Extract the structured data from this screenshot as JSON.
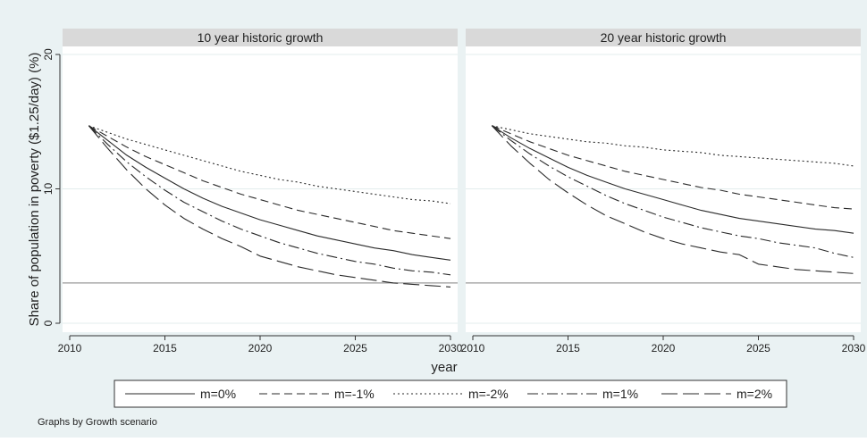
{
  "note": "Graphs by Growth scenario",
  "chart_data": {
    "type": "line",
    "ylabel": "Share of population in poverty ($1.25/day) (%)",
    "xlabel": "year",
    "x_ticks": [
      2010,
      2015,
      2020,
      2025,
      2030
    ],
    "y_ticks": [
      0,
      10,
      20
    ],
    "xlim": [
      2010,
      2030
    ],
    "ylim": [
      0,
      20
    ],
    "reference_line": 3,
    "legend_position": "bottom",
    "legend": [
      {
        "label": "m=0%",
        "dash": "solid"
      },
      {
        "label": "m=-1%",
        "dash": "dash"
      },
      {
        "label": "m=-2%",
        "dash": "dot"
      },
      {
        "label": "m=1%",
        "dash": "dashdot"
      },
      {
        "label": "m=2%",
        "dash": "longdash"
      }
    ],
    "panels": [
      {
        "title": "10 year historic growth",
        "series": [
          {
            "name": "m=0%",
            "x": [
              2011,
              2012,
              2013,
              2014,
              2015,
              2016,
              2017,
              2018,
              2019,
              2020,
              2021,
              2022,
              2023,
              2024,
              2025,
              2026,
              2027,
              2028,
              2029,
              2030
            ],
            "y": [
              14.7,
              13.6,
              12.5,
              11.6,
              10.8,
              10.0,
              9.3,
              8.7,
              8.2,
              7.7,
              7.3,
              6.9,
              6.5,
              6.2,
              5.9,
              5.6,
              5.4,
              5.1,
              4.9,
              4.7
            ]
          },
          {
            "name": "m=-1%",
            "x": [
              2011,
              2012,
              2013,
              2014,
              2015,
              2016,
              2017,
              2018,
              2019,
              2020,
              2021,
              2022,
              2023,
              2024,
              2025,
              2026,
              2027,
              2028,
              2029,
              2030
            ],
            "y": [
              14.7,
              13.9,
              13.1,
              12.4,
              11.8,
              11.2,
              10.6,
              10.1,
              9.6,
              9.2,
              8.8,
              8.4,
              8.1,
              7.8,
              7.5,
              7.2,
              6.9,
              6.7,
              6.5,
              6.3
            ]
          },
          {
            "name": "m=-2%",
            "x": [
              2011,
              2012,
              2013,
              2014,
              2015,
              2016,
              2017,
              2018,
              2019,
              2020,
              2021,
              2022,
              2023,
              2024,
              2025,
              2026,
              2027,
              2028,
              2029,
              2030
            ],
            "y": [
              14.7,
              14.2,
              13.7,
              13.3,
              12.9,
              12.5,
              12.1,
              11.7,
              11.3,
              11.0,
              10.7,
              10.5,
              10.2,
              10.0,
              9.8,
              9.6,
              9.4,
              9.2,
              9.1,
              8.9
            ]
          },
          {
            "name": "m=1%",
            "x": [
              2011,
              2012,
              2013,
              2014,
              2015,
              2016,
              2017,
              2018,
              2019,
              2020,
              2021,
              2022,
              2023,
              2024,
              2025,
              2026,
              2027,
              2028,
              2029,
              2030
            ],
            "y": [
              14.7,
              13.3,
              12.0,
              10.9,
              9.9,
              9.0,
              8.3,
              7.6,
              7.0,
              6.5,
              6.0,
              5.6,
              5.2,
              4.9,
              4.6,
              4.4,
              4.1,
              3.9,
              3.8,
              3.6
            ]
          },
          {
            "name": "m=2%",
            "x": [
              2011,
              2012,
              2013,
              2014,
              2015,
              2016,
              2017,
              2018,
              2019,
              2020,
              2021,
              2022,
              2023,
              2024,
              2025,
              2026,
              2027,
              2028,
              2029,
              2030
            ],
            "y": [
              14.7,
              13.0,
              11.4,
              10.0,
              8.8,
              7.8,
              7.0,
              6.3,
              5.7,
              5.0,
              4.6,
              4.2,
              3.9,
              3.6,
              3.4,
              3.2,
              3.0,
              2.9,
              2.8,
              2.7
            ]
          }
        ]
      },
      {
        "title": "20 year historic growth",
        "series": [
          {
            "name": "m=0%",
            "x": [
              2011,
              2012,
              2013,
              2014,
              2015,
              2016,
              2017,
              2018,
              2019,
              2020,
              2021,
              2022,
              2023,
              2024,
              2025,
              2026,
              2027,
              2028,
              2029,
              2030
            ],
            "y": [
              14.7,
              13.8,
              13.0,
              12.3,
              11.6,
              11.0,
              10.5,
              10.0,
              9.6,
              9.2,
              8.8,
              8.4,
              8.1,
              7.8,
              7.6,
              7.4,
              7.2,
              7.0,
              6.9,
              6.7
            ]
          },
          {
            "name": "m=-1%",
            "x": [
              2011,
              2012,
              2013,
              2014,
              2015,
              2016,
              2017,
              2018,
              2019,
              2020,
              2021,
              2022,
              2023,
              2024,
              2025,
              2026,
              2027,
              2028,
              2029,
              2030
            ],
            "y": [
              14.7,
              14.1,
              13.5,
              13.0,
              12.5,
              12.1,
              11.7,
              11.3,
              11.0,
              10.7,
              10.4,
              10.1,
              9.9,
              9.6,
              9.4,
              9.2,
              9.0,
              8.8,
              8.6,
              8.5
            ]
          },
          {
            "name": "m=-2%",
            "x": [
              2011,
              2012,
              2013,
              2014,
              2015,
              2016,
              2017,
              2018,
              2019,
              2020,
              2021,
              2022,
              2023,
              2024,
              2025,
              2026,
              2027,
              2028,
              2029,
              2030
            ],
            "y": [
              14.7,
              14.4,
              14.1,
              13.9,
              13.7,
              13.5,
              13.4,
              13.2,
              13.1,
              12.9,
              12.8,
              12.7,
              12.5,
              12.4,
              12.3,
              12.2,
              12.1,
              12.0,
              11.9,
              11.7
            ]
          },
          {
            "name": "m=1%",
            "x": [
              2011,
              2012,
              2013,
              2014,
              2015,
              2016,
              2017,
              2018,
              2019,
              2020,
              2021,
              2022,
              2023,
              2024,
              2025,
              2026,
              2027,
              2028,
              2029,
              2030
            ],
            "y": [
              14.7,
              13.6,
              12.6,
              11.7,
              10.9,
              10.2,
              9.5,
              8.9,
              8.4,
              7.9,
              7.5,
              7.1,
              6.8,
              6.5,
              6.3,
              6.0,
              5.8,
              5.6,
              5.2,
              4.9
            ]
          },
          {
            "name": "m=2%",
            "x": [
              2011,
              2012,
              2013,
              2014,
              2015,
              2016,
              2017,
              2018,
              2019,
              2020,
              2021,
              2022,
              2023,
              2024,
              2025,
              2026,
              2027,
              2028,
              2029,
              2030
            ],
            "y": [
              14.7,
              13.2,
              11.9,
              10.7,
              9.7,
              8.8,
              8.0,
              7.4,
              6.8,
              6.3,
              5.9,
              5.6,
              5.3,
              5.1,
              4.4,
              4.2,
              4.0,
              3.9,
              3.8,
              3.7
            ]
          }
        ]
      }
    ]
  }
}
